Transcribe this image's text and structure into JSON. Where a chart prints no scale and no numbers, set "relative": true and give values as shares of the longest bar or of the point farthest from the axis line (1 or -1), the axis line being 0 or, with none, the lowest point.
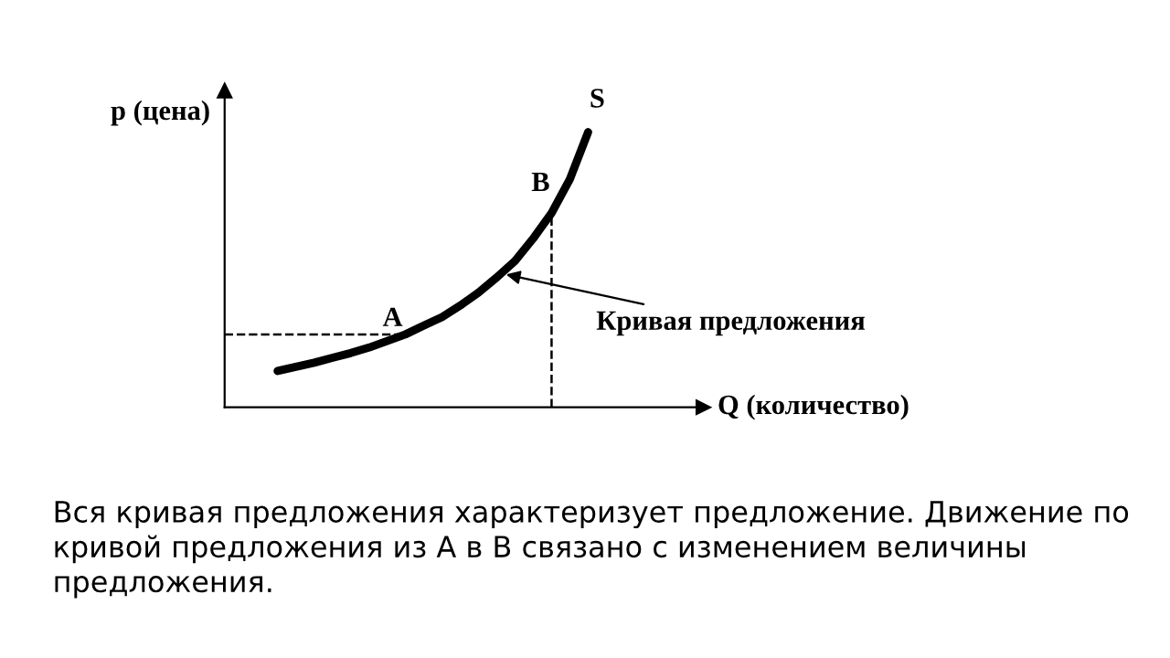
{
  "chart_data": {
    "type": "line",
    "relative": true,
    "xlabel": "Q (количество)",
    "ylabel": "p (цена)",
    "categories": [
      null,
      null,
      null,
      null,
      null,
      null,
      null,
      null,
      null,
      null,
      null,
      null,
      null,
      null,
      null,
      null,
      null,
      null
    ],
    "series": [
      {
        "name": "S",
        "color": "#000000",
        "values": [
          0.132,
          0.147,
          0.162,
          0.18,
          0.197,
          0.217,
          0.241,
          0.265,
          0.297,
          0.328,
          0.37,
          0.417,
          0.472,
          0.532,
          0.614,
          0.706,
          0.829,
          1
        ]
      }
    ],
    "ref_lines": [
      {
        "axis": "y",
        "value": 0.265,
        "label": "A",
        "line_style": "dashed",
        "color": "#000000"
      }
    ],
    "annotations": [
      {
        "text": "B",
        "y": 0.706
      },
      "Кривая предложения",
      "Вся кривая предложения характеризует предложение. Движение по кривой предложения из А в В связано с изменением величины предложения."
    ],
    "legend": false,
    "marker": "none",
    "line_style": "solid"
  }
}
